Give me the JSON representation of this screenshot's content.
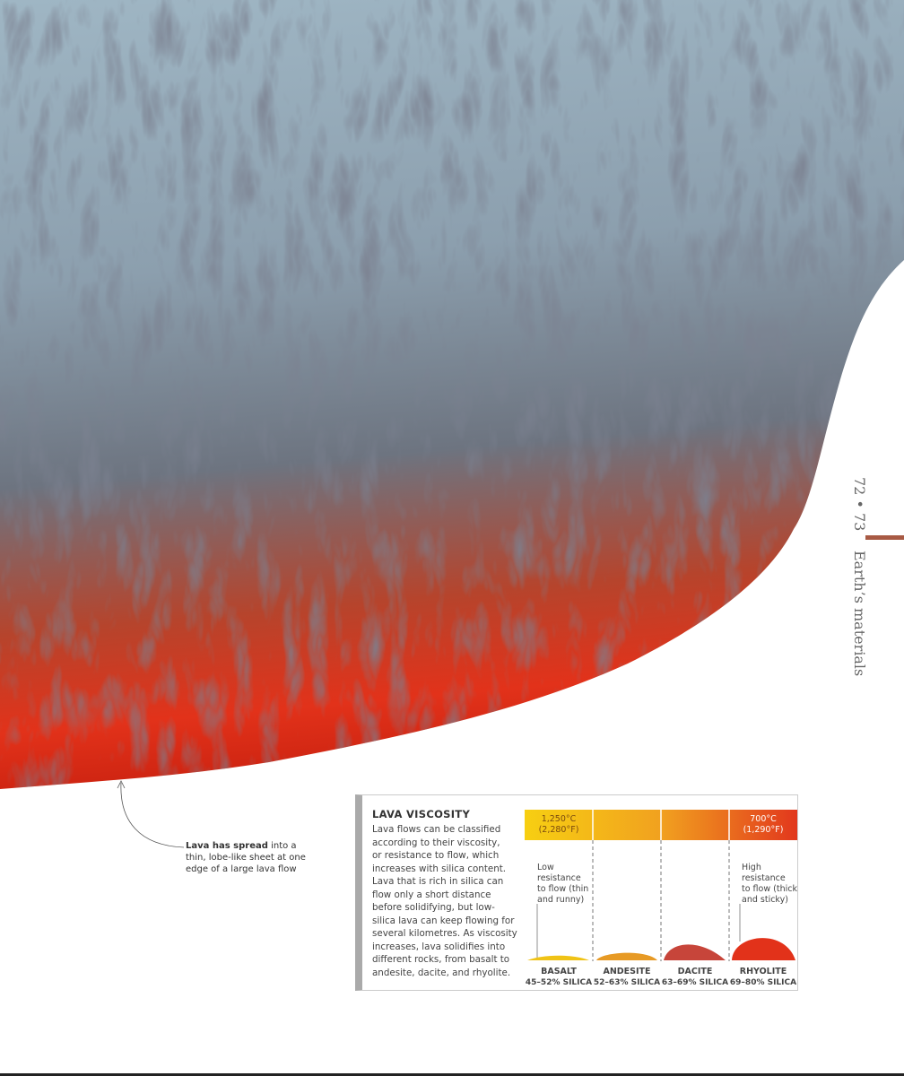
{
  "page_number": "72 • 73",
  "section": "Earth’s materials",
  "caption": {
    "bold": "Lava has spread",
    "lines": [
      "into a",
      "thin, lobe-like sheet at one",
      "edge of a large lava flow"
    ]
  },
  "sidebar": {
    "title": "LAVA VISCOSITY",
    "body_lines": [
      "Lava flows can be classified",
      "according to their viscosity,",
      "or resistance to flow, which",
      "increases with silica content.",
      "Lava that is rich in silica can",
      "flow only a short distance",
      "before solidifying, but low-",
      "silica lava can keep flowing for",
      "several kilometres. As viscosity",
      "increases, lava solidifies into",
      "different rocks, from basalt to",
      "andesite, dacite, and rhyolite."
    ],
    "diagram": {
      "high_temperature": [
        "1,250°C",
        "(2,280°F)"
      ],
      "low_temperature": [
        "700°C",
        "(1,290°F)"
      ],
      "low_resistance": [
        "Low",
        "resistance",
        "to flow (thin",
        "and runny)"
      ],
      "high_resistance": [
        "High",
        "resistance",
        "to flow (thick",
        "and sticky)"
      ],
      "lavas": [
        {
          "name": "BASALT",
          "silica": "45–52% SILICA"
        },
        {
          "name": "ANDESITE",
          "silica": "52–63% SILICA"
        },
        {
          "name": "DACITE",
          "silica": "63–69% SILICA"
        },
        {
          "name": "RHYOLITE",
          "silica": "69–80% SILICA"
        }
      ]
    }
  }
}
